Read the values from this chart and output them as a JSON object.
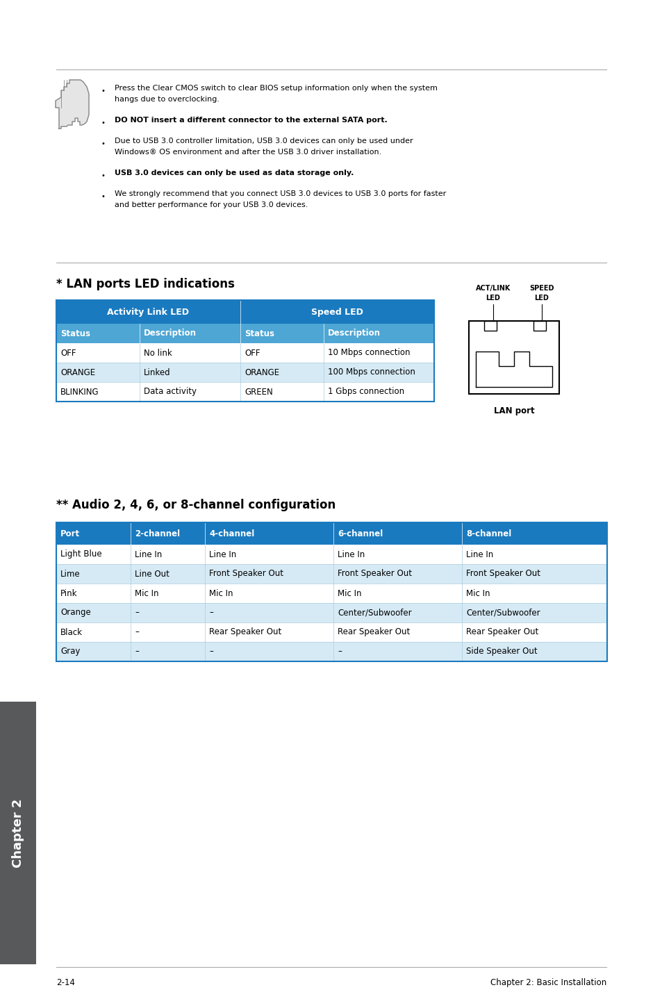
{
  "page_bg": "#ffffff",
  "header_blue_dark": "#1a7abf",
  "header_blue_sub": "#4da6d4",
  "border_blue": "#1a7abf",
  "row_alt": "#d6eaf5",
  "lan_title": "* LAN ports LED indications",
  "lan_header1": "Activity Link LED",
  "lan_header2": "Speed LED",
  "lan_sub_cols": [
    "Status",
    "Description",
    "Status",
    "Description"
  ],
  "lan_rows": [
    [
      "OFF",
      "No link",
      "OFF",
      "10 Mbps connection"
    ],
    [
      "ORANGE",
      "Linked",
      "ORANGE",
      "100 Mbps connection"
    ],
    [
      "BLINKING",
      "Data activity",
      "GREEN",
      "1 Gbps connection"
    ]
  ],
  "audio_title": "** Audio 2, 4, 6, or 8-channel configuration",
  "audio_headers": [
    "Port",
    "2-channel",
    "4-channel",
    "6-channel",
    "8-channel"
  ],
  "audio_rows": [
    [
      "Light Blue",
      "Line In",
      "Line In",
      "Line In",
      "Line In"
    ],
    [
      "Lime",
      "Line Out",
      "Front Speaker Out",
      "Front Speaker Out",
      "Front Speaker Out"
    ],
    [
      "Pink",
      "Mic In",
      "Mic In",
      "Mic In",
      "Mic In"
    ],
    [
      "Orange",
      "–",
      "–",
      "Center/Subwoofer",
      "Center/Subwoofer"
    ],
    [
      "Black",
      "–",
      "Rear Speaker Out",
      "Rear Speaker Out",
      "Rear Speaker Out"
    ],
    [
      "Gray",
      "–",
      "–",
      "–",
      "Side Speaker Out"
    ]
  ],
  "bullets": [
    {
      "bold": false,
      "lines": [
        "Press the Clear CMOS switch to clear BIOS setup information only when the system",
        "hangs due to overclocking."
      ]
    },
    {
      "bold": false,
      "lines": [
        "DO NOT insert a different connector to the external SATA port."
      ]
    },
    {
      "bold": false,
      "lines": [
        "Due to USB 3.0 controller limitation, USB 3.0 devices can only be used under",
        "Windows® OS environment and after the USB 3.0 driver installation."
      ]
    },
    {
      "bold": false,
      "lines": [
        "USB 3.0 devices can only be used as data storage only."
      ]
    },
    {
      "bold": false,
      "lines": [
        "We strongly recommend that you connect USB 3.0 devices to USB 3.0 ports for faster",
        "and better performance for your USB 3.0 devices."
      ]
    }
  ],
  "bold_bullets": [
    1,
    3
  ],
  "footer_left": "2-14",
  "footer_right": "Chapter 2: Basic Installation",
  "chapter_label": "Chapter 2",
  "chapter_sidebar_bg": "#58595b"
}
